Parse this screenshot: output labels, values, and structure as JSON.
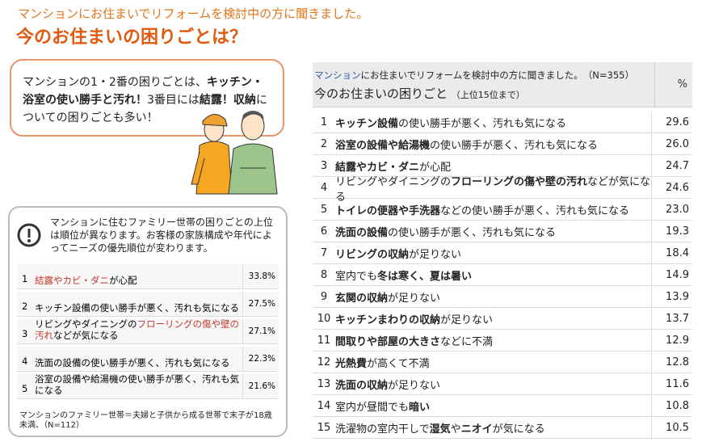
{
  "header": {
    "subtitle": "マンションにお住まいでリフォームを検討中の方に聞きました。",
    "title": "今のお住まいの困りごとは？"
  },
  "callout": {
    "segments": [
      {
        "t": "マンションの1・2番の困りごとは、"
      },
      {
        "t": "キッチン・浴室の使い勝手と汚れ！",
        "b": true
      },
      {
        "t": "3番目には"
      },
      {
        "t": "結露！収納",
        "b": true
      },
      {
        "t": "についての困りごとも多い！"
      }
    ]
  },
  "family": {
    "text": "マンションに住むファミリー世帯の困りごとの上位は順位が異なります。お客様の家族構成や年代によってニーズの優先順位が変わります。",
    "rows": [
      {
        "rank": "1",
        "label": [
          {
            "t": "結露やカビ・ダニ",
            "r": true
          },
          {
            "t": "が心配"
          }
        ],
        "pct": "33.8%"
      },
      {
        "rank": "2",
        "label": [
          {
            "t": "キッチン設備の使い勝手が悪く、汚れも気になる"
          }
        ],
        "pct": "27.5%"
      },
      {
        "rank": "3",
        "label": [
          {
            "t": "リビングやダイニングの"
          },
          {
            "t": "フローリングの傷や壁の汚れ",
            "r": true
          },
          {
            "t": "などが気になる"
          }
        ],
        "pct": "27.1%"
      },
      {
        "rank": "4",
        "label": [
          {
            "t": "洗面の設備の使い勝手が悪く、汚れも気になる"
          }
        ],
        "pct": "22.3%"
      },
      {
        "rank": "5",
        "label": [
          {
            "t": "浴室の設備や給湯機の使い勝手が悪く、汚れも気になる"
          }
        ],
        "pct": "21.6%"
      }
    ],
    "note": "マンションのファミリー世帯＝夫婦と子供から成る世帯で末子が18歳未満、（N=112）"
  },
  "table": {
    "caption": [
      "マンション",
      "にお住まいでリフォームを検討中の方に聞きました。"
    ],
    "n": "（N=355）",
    "title": "今のお住まいの困りごと",
    "title_note": "（上位15位まで）",
    "pct_header": "%",
    "rows": [
      {
        "rank": "1",
        "label": [
          {
            "t": "キッチン設備",
            "b": true
          },
          {
            "t": "の使い勝手が悪く、汚れも気になる"
          }
        ],
        "pct": "29.6"
      },
      {
        "rank": "2",
        "label": [
          {
            "t": "浴室の設備や給湯機",
            "b": true
          },
          {
            "t": "の使い勝手が悪く、汚れも気になる"
          }
        ],
        "pct": "26.0"
      },
      {
        "rank": "3",
        "label": [
          {
            "t": "結露やカビ・ダニ",
            "b": true
          },
          {
            "t": "が心配"
          }
        ],
        "pct": "24.7"
      },
      {
        "rank": "4",
        "label": [
          {
            "t": "リビングやダイニングの"
          },
          {
            "t": "フローリングの傷や壁の汚れ",
            "b": true
          },
          {
            "t": "などが気になる"
          }
        ],
        "pct": "24.6"
      },
      {
        "rank": "5",
        "label": [
          {
            "t": "トイレの便器や手洗器",
            "b": true
          },
          {
            "t": "などの使い勝手が悪く、汚れも気になる"
          }
        ],
        "pct": "23.0"
      },
      {
        "rank": "6",
        "label": [
          {
            "t": "洗面の設備",
            "b": true
          },
          {
            "t": "の使い勝手が悪く、汚れも気になる"
          }
        ],
        "pct": "19.3"
      },
      {
        "rank": "7",
        "label": [
          {
            "t": "リビングの収納",
            "b": true
          },
          {
            "t": "が足りない"
          }
        ],
        "pct": "18.4"
      },
      {
        "rank": "8",
        "label": [
          {
            "t": "室内でも"
          },
          {
            "t": "冬は寒く、夏は暑い",
            "b": true
          }
        ],
        "pct": "14.9"
      },
      {
        "rank": "9",
        "label": [
          {
            "t": "玄関の収納",
            "b": true
          },
          {
            "t": "が足りない"
          }
        ],
        "pct": "13.9"
      },
      {
        "rank": "10",
        "label": [
          {
            "t": "キッチンまわりの収納",
            "b": true
          },
          {
            "t": "が足りない"
          }
        ],
        "pct": "13.7"
      },
      {
        "rank": "11",
        "label": [
          {
            "t": "間取りや部屋の大きさ",
            "b": true
          },
          {
            "t": "などに不満"
          }
        ],
        "pct": "12.9"
      },
      {
        "rank": "12",
        "label": [
          {
            "t": "光熱費",
            "b": true
          },
          {
            "t": "が高くて不満"
          }
        ],
        "pct": "12.8"
      },
      {
        "rank": "13",
        "label": [
          {
            "t": "洗面の収納",
            "b": true
          },
          {
            "t": "が足りない"
          }
        ],
        "pct": "11.6"
      },
      {
        "rank": "14",
        "label": [
          {
            "t": "室内が昼間でも"
          },
          {
            "t": "暗い",
            "b": true
          }
        ],
        "pct": "10.8"
      },
      {
        "rank": "15",
        "label": [
          {
            "t": "洗濯物の室内干しで"
          },
          {
            "t": "湿気",
            "b": true
          },
          {
            "t": "や"
          },
          {
            "t": "ニオイ",
            "b": true
          },
          {
            "t": "が気になる"
          }
        ],
        "pct": "10.5"
      }
    ]
  }
}
